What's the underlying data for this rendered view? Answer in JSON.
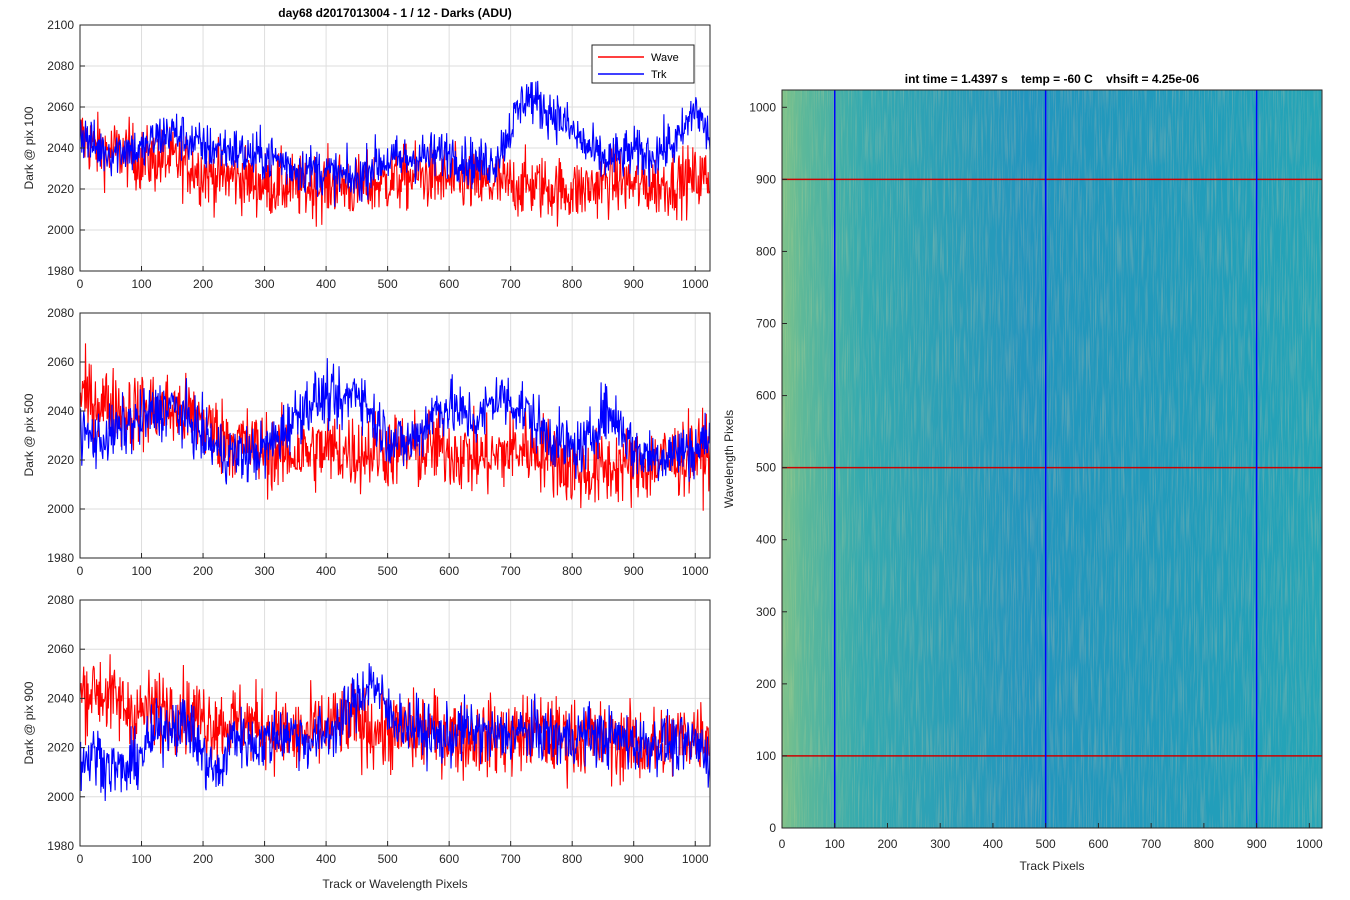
{
  "figure": {
    "title": "day68 d2017013004 - 1 / 12 - Darks (ADU)",
    "colors": {
      "wave": "#ff0000",
      "trk": "#0000ff",
      "axis": "#262626",
      "grid": "#dedede",
      "heat_low": "#1f6fbf",
      "heat_mid": "#2aa9b0",
      "heat_high": "#c8c84a"
    }
  },
  "chart_data": [
    {
      "type": "line",
      "panel": "top",
      "title": "day68 d2017013004 - 1 / 12 - Darks (ADU)",
      "xlabel": "",
      "ylabel": "Dark @ pix 100",
      "xlim": [
        0,
        1024
      ],
      "ylim": [
        1980,
        2100
      ],
      "xticks": [
        0,
        100,
        200,
        300,
        400,
        500,
        600,
        700,
        800,
        900,
        1000
      ],
      "yticks": [
        1980,
        2000,
        2020,
        2040,
        2060,
        2080,
        2100
      ],
      "grid": true,
      "legend": {
        "position": "top-right",
        "entries": [
          "Wave",
          "Trk"
        ]
      },
      "series": [
        {
          "name": "Wave",
          "color": "#ff0000",
          "x": [
            0,
            25,
            50,
            75,
            100,
            125,
            150,
            175,
            200,
            225,
            250,
            275,
            300,
            325,
            350,
            375,
            400,
            425,
            450,
            475,
            500,
            525,
            550,
            575,
            600,
            625,
            650,
            675,
            700,
            725,
            750,
            775,
            800,
            825,
            850,
            875,
            900,
            925,
            950,
            975,
            1000,
            1024
          ],
          "values": [
            2046,
            2040,
            2038,
            2038,
            2034,
            2034,
            2034,
            2032,
            2028,
            2026,
            2026,
            2024,
            2022,
            2022,
            2021,
            2021,
            2022,
            2023,
            2020,
            2022,
            2024,
            2025,
            2027,
            2025,
            2024,
            2024,
            2022,
            2022,
            2022,
            2022,
            2021,
            2020,
            2019,
            2020,
            2023,
            2024,
            2022,
            2022,
            2022,
            2024,
            2025,
            2026
          ]
        },
        {
          "name": "Trk",
          "color": "#0000ff",
          "x": [
            0,
            25,
            50,
            75,
            100,
            125,
            150,
            175,
            200,
            225,
            250,
            275,
            300,
            325,
            350,
            375,
            400,
            425,
            450,
            475,
            500,
            525,
            550,
            575,
            600,
            625,
            650,
            675,
            700,
            725,
            750,
            775,
            800,
            825,
            850,
            875,
            900,
            925,
            950,
            975,
            1000,
            1024
          ],
          "values": [
            2048,
            2040,
            2038,
            2040,
            2038,
            2045,
            2048,
            2044,
            2040,
            2040,
            2039,
            2036,
            2036,
            2034,
            2030,
            2030,
            2028,
            2026,
            2024,
            2032,
            2034,
            2034,
            2036,
            2036,
            2038,
            2034,
            2032,
            2034,
            2050,
            2066,
            2060,
            2056,
            2048,
            2040,
            2034,
            2036,
            2038,
            2036,
            2040,
            2044,
            2060,
            2044
          ]
        }
      ]
    },
    {
      "type": "line",
      "panel": "middle",
      "xlabel": "",
      "ylabel": "Dark @ pix 500",
      "xlim": [
        0,
        1024
      ],
      "ylim": [
        1980,
        2080
      ],
      "xticks": [
        0,
        100,
        200,
        300,
        400,
        500,
        600,
        700,
        800,
        900,
        1000
      ],
      "yticks": [
        1980,
        2000,
        2020,
        2040,
        2060,
        2080
      ],
      "grid": true,
      "series": [
        {
          "name": "Wave",
          "color": "#ff0000",
          "x": [
            0,
            25,
            50,
            75,
            100,
            125,
            150,
            175,
            200,
            225,
            250,
            275,
            300,
            325,
            350,
            375,
            400,
            425,
            450,
            475,
            500,
            525,
            550,
            575,
            600,
            625,
            650,
            675,
            700,
            725,
            750,
            775,
            800,
            825,
            850,
            875,
            900,
            925,
            950,
            975,
            1000,
            1024
          ],
          "values": [
            2046,
            2044,
            2042,
            2040,
            2040,
            2041,
            2040,
            2038,
            2036,
            2030,
            2028,
            2026,
            2024,
            2022,
            2023,
            2023,
            2024,
            2024,
            2023,
            2024,
            2024,
            2024,
            2023,
            2025,
            2024,
            2022,
            2021,
            2021,
            2024,
            2025,
            2024,
            2020,
            2016,
            2015,
            2016,
            2018,
            2017,
            2018,
            2020,
            2021,
            2022,
            2024
          ]
        },
        {
          "name": "Trk",
          "color": "#0000ff",
          "x": [
            0,
            25,
            50,
            75,
            100,
            125,
            150,
            175,
            200,
            225,
            250,
            275,
            300,
            325,
            350,
            375,
            400,
            425,
            450,
            475,
            500,
            525,
            550,
            575,
            600,
            625,
            650,
            675,
            700,
            725,
            750,
            775,
            800,
            825,
            850,
            875,
            900,
            925,
            950,
            975,
            1000,
            1024
          ],
          "values": [
            2032,
            2028,
            2030,
            2034,
            2036,
            2040,
            2042,
            2036,
            2030,
            2024,
            2022,
            2022,
            2024,
            2030,
            2038,
            2044,
            2046,
            2042,
            2050,
            2038,
            2030,
            2026,
            2030,
            2040,
            2042,
            2038,
            2036,
            2046,
            2044,
            2040,
            2032,
            2028,
            2024,
            2026,
            2040,
            2036,
            2024,
            2022,
            2022,
            2024,
            2024,
            2030
          ]
        }
      ]
    },
    {
      "type": "line",
      "panel": "bottom",
      "xlabel": "Track or Wavelength Pixels",
      "ylabel": "Dark @ pix 900",
      "xlim": [
        0,
        1024
      ],
      "ylim": [
        1980,
        2080
      ],
      "xticks": [
        0,
        100,
        200,
        300,
        400,
        500,
        600,
        700,
        800,
        900,
        1000
      ],
      "yticks": [
        1980,
        2000,
        2020,
        2040,
        2060,
        2080
      ],
      "grid": true,
      "series": [
        {
          "name": "Wave",
          "color": "#ff0000",
          "x": [
            0,
            25,
            50,
            75,
            100,
            125,
            150,
            175,
            200,
            225,
            250,
            275,
            300,
            325,
            350,
            375,
            400,
            425,
            450,
            475,
            500,
            525,
            550,
            575,
            600,
            625,
            650,
            675,
            700,
            725,
            750,
            775,
            800,
            825,
            850,
            875,
            900,
            925,
            950,
            975,
            1000,
            1024
          ],
          "values": [
            2042,
            2044,
            2040,
            2036,
            2034,
            2036,
            2036,
            2034,
            2032,
            2030,
            2030,
            2030,
            2028,
            2026,
            2024,
            2026,
            2028,
            2030,
            2030,
            2028,
            2026,
            2026,
            2026,
            2027,
            2026,
            2024,
            2024,
            2024,
            2024,
            2026,
            2026,
            2024,
            2024,
            2024,
            2022,
            2022,
            2022,
            2020,
            2022,
            2024,
            2026,
            2026
          ]
        },
        {
          "name": "Trk",
          "color": "#0000ff",
          "x": [
            0,
            25,
            50,
            75,
            100,
            125,
            150,
            175,
            200,
            225,
            250,
            275,
            300,
            325,
            350,
            375,
            400,
            425,
            450,
            475,
            500,
            525,
            550,
            575,
            600,
            625,
            650,
            675,
            700,
            725,
            750,
            775,
            800,
            825,
            850,
            875,
            900,
            925,
            950,
            975,
            1000,
            1024
          ],
          "values": [
            2014,
            2018,
            2012,
            2010,
            2018,
            2026,
            2030,
            2030,
            2016,
            2008,
            2026,
            2022,
            2022,
            2026,
            2026,
            2022,
            2026,
            2030,
            2040,
            2048,
            2034,
            2030,
            2028,
            2024,
            2024,
            2028,
            2026,
            2024,
            2026,
            2026,
            2026,
            2024,
            2024,
            2026,
            2024,
            2024,
            2022,
            2022,
            2022,
            2020,
            2022,
            2016
          ]
        }
      ]
    },
    {
      "type": "heatmap",
      "panel": "image",
      "title": "int time = 1.4397 s    temp = -60 C    vhsift = 4.25e-06",
      "xlabel": "Track Pixels",
      "ylabel": "Wavelength Pixels",
      "xlim": [
        0,
        1024
      ],
      "ylim": [
        0,
        1024
      ],
      "xticks": [
        0,
        100,
        200,
        300,
        400,
        500,
        600,
        700,
        800,
        900,
        1000
      ],
      "yticks": [
        0,
        100,
        200,
        300,
        400,
        500,
        600,
        700,
        800,
        900,
        1000
      ],
      "vertical_markers": [
        100,
        500,
        900
      ],
      "horizontal_markers": [
        100,
        500,
        900
      ],
      "vertical_marker_color": "#0000ff",
      "horizontal_marker_color": "#cc0000"
    }
  ]
}
